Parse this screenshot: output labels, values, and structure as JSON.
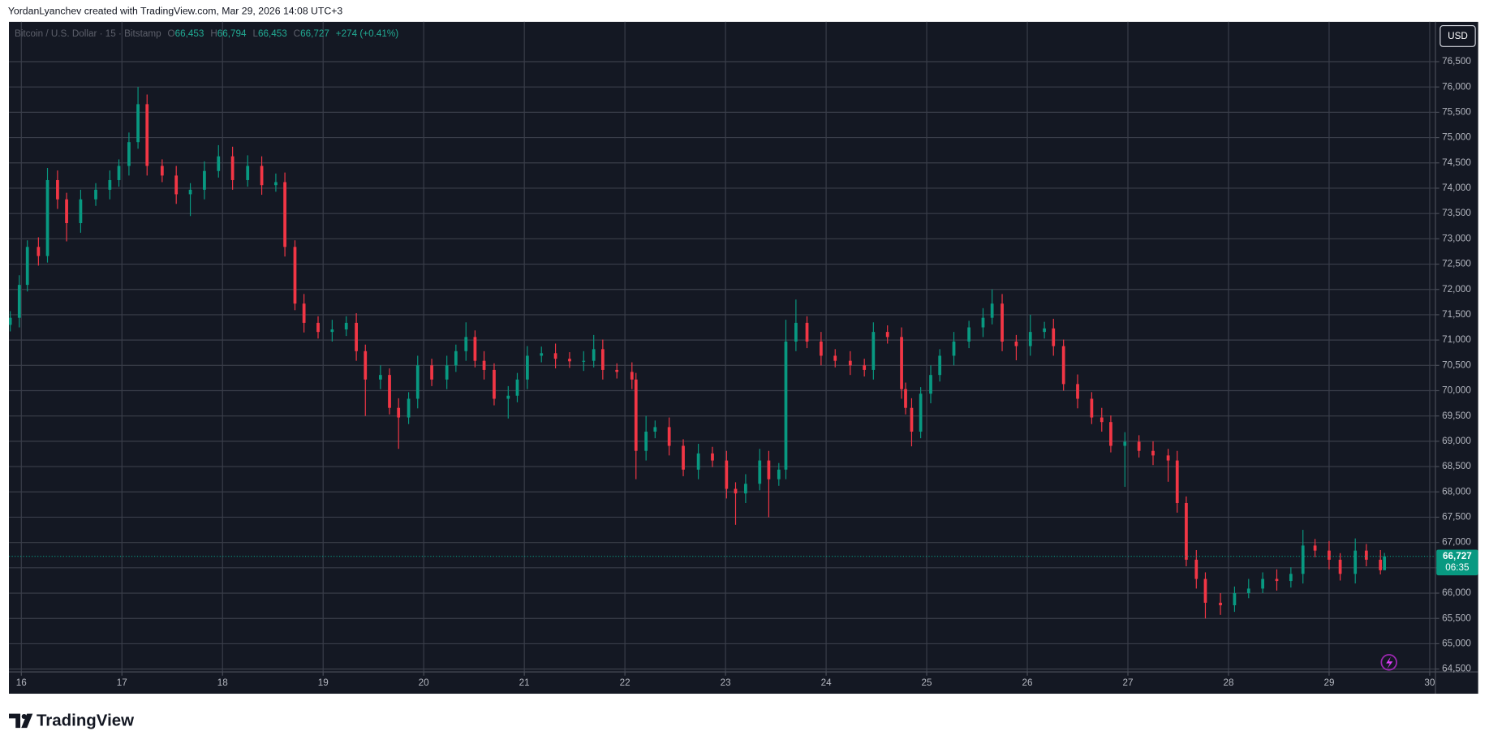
{
  "chart_data": {
    "type": "candlestick",
    "credit": "YordanLyanchev created with TradingView.com, Mar 29, 2026 14:08 UTC+3",
    "title": "Bitcoin / U.S. Dollar · 15 · Bitstamp",
    "ohlc_legend": [
      {
        "label": "O",
        "value": "66,453"
      },
      {
        "label": "H",
        "value": "66,794"
      },
      {
        "label": "L",
        "value": "66,453"
      },
      {
        "label": "C",
        "value": "66,727"
      }
    ],
    "change": "+274 (+0.41%)",
    "currency": "USD",
    "brand": "TradingView",
    "up_color": "#089981",
    "down_color": "#f23645",
    "grid": true,
    "x": [
      15.89,
      15.98,
      16.06,
      16.17,
      16.26,
      16.36,
      16.45,
      16.59,
      16.74,
      16.88,
      16.97,
      17.07,
      17.16,
      17.25,
      17.4,
      17.54,
      17.68,
      17.82,
      17.96,
      18.1,
      18.25,
      18.39,
      18.53,
      18.62,
      18.72,
      18.81,
      18.95,
      19.09,
      19.23,
      19.33,
      19.42,
      19.57,
      19.66,
      19.75,
      19.85,
      19.94,
      20.08,
      20.23,
      20.32,
      20.42,
      20.51,
      20.6,
      20.7,
      20.84,
      20.93,
      21.03,
      21.17,
      21.31,
      21.45,
      21.59,
      21.69,
      21.78,
      21.92,
      22.07,
      22.11,
      22.21,
      22.3,
      22.44,
      22.58,
      22.73,
      22.87,
      23.01,
      23.1,
      23.2,
      23.34,
      23.43,
      23.53,
      23.6,
      23.7,
      23.81,
      23.95,
      24.09,
      24.24,
      24.38,
      24.47,
      24.61,
      24.75,
      24.79,
      24.85,
      24.94,
      25.04,
      25.13,
      25.27,
      25.42,
      25.56,
      25.65,
      25.75,
      25.89,
      26.03,
      26.17,
      26.26,
      26.36,
      26.5,
      26.64,
      26.74,
      26.83,
      26.97,
      27.11,
      27.25,
      27.4,
      27.49,
      27.58,
      27.68,
      27.77,
      27.92,
      28.06,
      28.2,
      28.34,
      28.48,
      28.62,
      28.74,
      28.86,
      29.0,
      29.11,
      29.26,
      29.37,
      29.51,
      29.55
    ],
    "open": [
      71300,
      71440,
      72090,
      72840,
      72660,
      74160,
      73780,
      73310,
      73780,
      73970,
      74160,
      74440,
      74910,
      75660,
      74440,
      74250,
      73880,
      73970,
      74340,
      74630,
      74160,
      74440,
      74060,
      74120,
      72840,
      71720,
      71340,
      71160,
      71210,
      71340,
      70780,
      70220,
      70310,
      69660,
      69470,
      69840,
      70500,
      70220,
      70500,
      70780,
      71060,
      70590,
      70410,
      69840,
      69900,
      70220,
      70690,
      70740,
      70630,
      70580,
      70590,
      70820,
      70410,
      70370,
      70220,
      68810,
      69190,
      69280,
      68910,
      68440,
      68760,
      68620,
      68060,
      67970,
      68160,
      68620,
      68250,
      68440,
      70970,
      71340,
      70970,
      70690,
      70590,
      70500,
      70410,
      71160,
      71060,
      70030,
      69660,
      69190,
      69940,
      70310,
      70690,
      70970,
      71250,
      71440,
      71720,
      70970,
      70880,
      71160,
      71230,
      70880,
      70130,
      69840,
      69470,
      69380,
      68910,
      68990,
      68810,
      68720,
      68620,
      67780,
      66660,
      66280,
      65810,
      65760,
      66000,
      66090,
      66280,
      66240,
      66380,
      66940,
      66840,
      66660,
      66380,
      66840,
      66660,
      66453
    ],
    "high": [
      71570,
      72280,
      72970,
      73030,
      74400,
      74350,
      73910,
      73970,
      74100,
      74350,
      74570,
      75100,
      76000,
      75850,
      74570,
      74440,
      74100,
      74530,
      74850,
      74820,
      74650,
      74630,
      74290,
      74310,
      72970,
      71910,
      71470,
      71400,
      71470,
      71530,
      70910,
      70500,
      70440,
      69850,
      69970,
      70690,
      70630,
      70690,
      70910,
      71350,
      71190,
      70780,
      70540,
      70090,
      70350,
      70880,
      70870,
      70930,
      70760,
      70780,
      71100,
      71010,
      70540,
      70560,
      70350,
      69500,
      69410,
      69470,
      69040,
      68950,
      68890,
      68810,
      68190,
      68350,
      68850,
      68810,
      68570,
      71400,
      71800,
      71470,
      71160,
      70820,
      70780,
      70630,
      71350,
      71290,
      71250,
      70160,
      69850,
      70070,
      70500,
      70820,
      71160,
      71380,
      71630,
      72000,
      71910,
      71100,
      71500,
      71360,
      71420,
      71010,
      70320,
      69970,
      69660,
      69510,
      69180,
      69120,
      69000,
      68850,
      68810,
      67910,
      66850,
      66410,
      66000,
      66130,
      66280,
      66410,
      66470,
      66510,
      67250,
      67070,
      67030,
      66790,
      67080,
      66970,
      66850,
      66794
    ],
    "low": [
      71170,
      71250,
      71960,
      72470,
      72530,
      73590,
      72950,
      73120,
      73650,
      73780,
      74030,
      74250,
      74780,
      74250,
      74120,
      73690,
      73450,
      73780,
      74210,
      73970,
      74030,
      73870,
      73930,
      72650,
      71590,
      71150,
      71030,
      70970,
      71080,
      70590,
      69500,
      70030,
      69530,
      68850,
      69340,
      69650,
      70090,
      70030,
      70370,
      70590,
      70460,
      70220,
      69710,
      69450,
      69770,
      70030,
      70560,
      70440,
      70450,
      70390,
      70460,
      70220,
      70240,
      70030,
      68250,
      68620,
      69060,
      68720,
      68310,
      68250,
      68490,
      67870,
      67350,
      67780,
      68030,
      67500,
      68120,
      68250,
      70780,
      70840,
      70500,
      70460,
      70310,
      70280,
      70220,
      70930,
      69840,
      69530,
      68900,
      69060,
      69750,
      70180,
      70500,
      70840,
      71060,
      71310,
      70780,
      70600,
      70690,
      71030,
      70690,
      70000,
      69650,
      69340,
      69190,
      68780,
      68100,
      68680,
      68530,
      68200,
      67590,
      66530,
      66090,
      65500,
      65570,
      65630,
      65900,
      66000,
      66050,
      66110,
      66190,
      66710,
      66470,
      66250,
      66190,
      66530,
      66370,
      66453
    ],
    "close": [
      71440,
      72090,
      72840,
      72660,
      74160,
      73780,
      73310,
      73780,
      73970,
      74160,
      74440,
      74910,
      75660,
      74440,
      74250,
      73880,
      73970,
      74340,
      74630,
      74160,
      74440,
      74060,
      74120,
      72840,
      71720,
      71340,
      71160,
      71210,
      71340,
      70780,
      70220,
      70310,
      69660,
      69470,
      69840,
      70500,
      70220,
      70500,
      70780,
      71060,
      70590,
      70410,
      69840,
      69900,
      70220,
      70690,
      70740,
      70630,
      70580,
      70590,
      70820,
      70410,
      70370,
      70220,
      68810,
      69190,
      69280,
      68910,
      68440,
      68760,
      68620,
      68060,
      67970,
      68160,
      68620,
      68250,
      68440,
      70970,
      71340,
      70970,
      70690,
      70590,
      70500,
      70410,
      71160,
      71060,
      70030,
      69660,
      69190,
      69940,
      70310,
      70690,
      70970,
      71250,
      71440,
      71720,
      70970,
      70880,
      71160,
      71230,
      70880,
      70130,
      69840,
      69470,
      69380,
      68910,
      68990,
      68810,
      68720,
      68620,
      67780,
      66660,
      66280,
      65810,
      65760,
      66000,
      66090,
      66280,
      66240,
      66380,
      66940,
      66840,
      66660,
      66380,
      66840,
      66660,
      66453,
      66727
    ],
    "xlim": [
      15.877,
      30.057
    ],
    "xticks": [
      16,
      17,
      18,
      19,
      20,
      21,
      22,
      23,
      24,
      25,
      26,
      27,
      28,
      29,
      30
    ],
    "ylim": [
      64444,
      77287
    ],
    "yticks": [
      {
        "value": 64500,
        "label": "64,500"
      },
      {
        "value": 65000,
        "label": "65,000"
      },
      {
        "value": 65500,
        "label": "65,500"
      },
      {
        "value": 66000,
        "label": "66,000"
      },
      {
        "value": 66500,
        "label": "66,500"
      },
      {
        "value": 67000,
        "label": "67,000"
      },
      {
        "value": 67500,
        "label": "67,500"
      },
      {
        "value": 68000,
        "label": "68,000"
      },
      {
        "value": 68500,
        "label": "68,500"
      },
      {
        "value": 69000,
        "label": "69,000"
      },
      {
        "value": 69500,
        "label": "69,500"
      },
      {
        "value": 70000,
        "label": "70,000"
      },
      {
        "value": 70500,
        "label": "70,500"
      },
      {
        "value": 71000,
        "label": "71,000"
      },
      {
        "value": 71500,
        "label": "71,500"
      },
      {
        "value": 72000,
        "label": "72,000"
      },
      {
        "value": 72500,
        "label": "72,500"
      },
      {
        "value": 73000,
        "label": "73,000"
      },
      {
        "value": 73500,
        "label": "73,500"
      },
      {
        "value": 74000,
        "label": "74,000"
      },
      {
        "value": 74500,
        "label": "74,500"
      },
      {
        "value": 75000,
        "label": "75,000"
      },
      {
        "value": 75500,
        "label": "75,500"
      },
      {
        "value": 76000,
        "label": "76,000"
      },
      {
        "value": 76500,
        "label": "76,500"
      }
    ],
    "last_price": {
      "value": 66727,
      "label": "66,727"
    },
    "countdown": "06:35"
  }
}
